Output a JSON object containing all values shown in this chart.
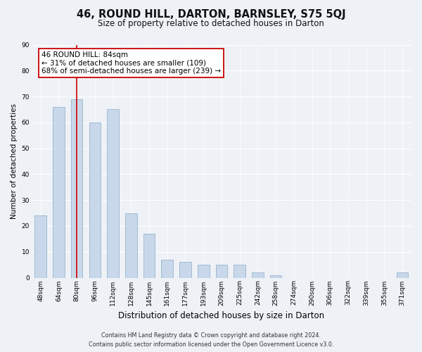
{
  "title": "46, ROUND HILL, DARTON, BARNSLEY, S75 5QJ",
  "subtitle": "Size of property relative to detached houses in Darton",
  "xlabel": "Distribution of detached houses by size in Darton",
  "ylabel": "Number of detached properties",
  "categories": [
    "48sqm",
    "64sqm",
    "80sqm",
    "96sqm",
    "112sqm",
    "128sqm",
    "145sqm",
    "161sqm",
    "177sqm",
    "193sqm",
    "209sqm",
    "225sqm",
    "242sqm",
    "258sqm",
    "274sqm",
    "290sqm",
    "306sqm",
    "322sqm",
    "339sqm",
    "355sqm",
    "371sqm"
  ],
  "values": [
    24,
    66,
    69,
    60,
    65,
    25,
    17,
    7,
    6,
    5,
    5,
    5,
    2,
    1,
    0,
    0,
    0,
    0,
    0,
    0,
    2
  ],
  "bar_color": "#c8d8ea",
  "bar_edge_color": "#9ab4cc",
  "highlight_index": 2,
  "highlight_color": "#cc0000",
  "annotation_title": "46 ROUND HILL: 84sqm",
  "annotation_line1": "← 31% of detached houses are smaller (109)",
  "annotation_line2": "68% of semi-detached houses are larger (239) →",
  "annotation_box_color": "#ffffff",
  "annotation_box_edge": "#cc0000",
  "ylim": [
    0,
    90
  ],
  "yticks": [
    0,
    10,
    20,
    30,
    40,
    50,
    60,
    70,
    80,
    90
  ],
  "footer_line1": "Contains HM Land Registry data © Crown copyright and database right 2024.",
  "footer_line2": "Contains public sector information licensed under the Open Government Licence v3.0.",
  "bg_color": "#eef2f7",
  "grid_color": "#ffffff",
  "title_fontsize": 10.5,
  "subtitle_fontsize": 8.5,
  "ylabel_fontsize": 7.5,
  "xlabel_fontsize": 8.5,
  "tick_fontsize": 6.5,
  "annotation_fontsize": 7.5,
  "footer_fontsize": 5.8
}
